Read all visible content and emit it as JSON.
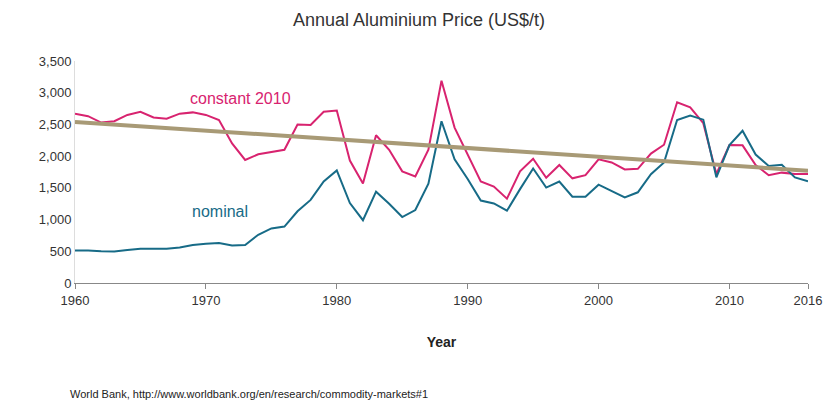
{
  "chart_data": {
    "type": "line",
    "title": "Annual Aluminium Price (US$/t)",
    "x_label": "Year",
    "annotations": [
      "World Bank, http://www.worldbank.org/en/research/commodity-markets#1"
    ],
    "x": [
      1960,
      1961,
      1962,
      1963,
      1964,
      1965,
      1966,
      1967,
      1968,
      1969,
      1970,
      1971,
      1972,
      1973,
      1974,
      1975,
      1976,
      1977,
      1978,
      1979,
      1980,
      1981,
      1982,
      1983,
      1984,
      1985,
      1986,
      1987,
      1988,
      1989,
      1990,
      1991,
      1992,
      1993,
      1994,
      1995,
      1996,
      1997,
      1998,
      1999,
      2000,
      2001,
      2002,
      2003,
      2004,
      2005,
      2006,
      2007,
      2008,
      2009,
      2010,
      2011,
      2012,
      2013,
      2014,
      2015,
      2016
    ],
    "series": [
      {
        "name": "constant 2010",
        "color": "#d8236f",
        "values": [
          2670,
          2630,
          2530,
          2550,
          2650,
          2700,
          2610,
          2590,
          2670,
          2690,
          2650,
          2570,
          2200,
          1940,
          2030,
          2070,
          2100,
          2500,
          2490,
          2700,
          2720,
          1930,
          1570,
          2330,
          2100,
          1760,
          1680,
          2100,
          3190,
          2450,
          2020,
          1600,
          1520,
          1330,
          1760,
          1960,
          1660,
          1860,
          1650,
          1700,
          1950,
          1900,
          1790,
          1800,
          2040,
          2180,
          2850,
          2770,
          2520,
          1720,
          2175,
          2170,
          1860,
          1700,
          1740,
          1720,
          1720
        ]
      },
      {
        "name": "nominal",
        "color": "#176b87",
        "values": [
          511,
          512,
          500,
          497,
          520,
          540,
          540,
          540,
          560,
          600,
          620,
          630,
          590,
          600,
          760,
          860,
          890,
          1130,
          1310,
          1600,
          1775,
          1260,
          990,
          1440,
          1250,
          1040,
          1150,
          1565,
          2550,
          1950,
          1640,
          1300,
          1255,
          1140,
          1480,
          1805,
          1505,
          1600,
          1360,
          1360,
          1550,
          1445,
          1350,
          1430,
          1715,
          1900,
          2570,
          2640,
          2575,
          1665,
          2175,
          2400,
          2025,
          1845,
          1865,
          1665,
          1605
        ]
      },
      {
        "color": "#a89a76",
        "x": [
          1960,
          2016
        ],
        "values": [
          2540,
          1770
        ]
      }
    ],
    "xlim": [
      1960,
      2016
    ],
    "xticks": [
      1960,
      1970,
      1980,
      1990,
      2000,
      2010,
      2016
    ],
    "ylim": [
      0,
      3500
    ],
    "yticks": [
      0,
      500,
      {
        "value": 1000,
        "label": "1,000"
      },
      {
        "value": 1500,
        "label": "1,500"
      },
      {
        "value": 2000,
        "label": "2,000"
      },
      {
        "value": 2500,
        "label": "2,500"
      },
      {
        "value": 3000,
        "label": "3,000"
      },
      {
        "value": 3500,
        "label": "3,500"
      }
    ],
    "grid": false
  }
}
